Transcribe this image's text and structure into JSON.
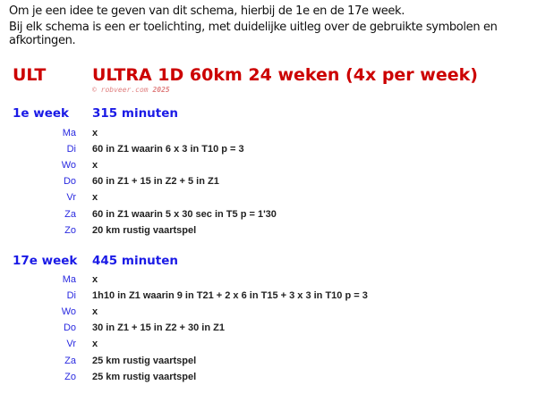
{
  "intro": [
    "Om je een idee te geven van dit schema, hierbij de 1e en de 17e week.",
    "Bij elk schema is een er toelichting, met duidelijke uitleg over de gebruikte symbolen en afkortingen."
  ],
  "schema": {
    "code": "ULT",
    "title": "ULTRA 1D 60km 24 weken (4x per week)",
    "copyright": "© robveer.com",
    "year": "2025"
  },
  "weeks": [
    {
      "label": "1e week",
      "total": "315 minuten",
      "days": [
        {
          "day": "Ma",
          "plan": "x"
        },
        {
          "day": "Di",
          "plan": "60 in Z1  waarin 6 x 3 in T10 p = 3"
        },
        {
          "day": "Wo",
          "plan": "x"
        },
        {
          "day": "Do",
          "plan": "60 in Z1 + 15 in Z2 + 5 in Z1"
        },
        {
          "day": "Vr",
          "plan": "x"
        },
        {
          "day": "Za",
          "plan": "60 in Z1  waarin 5 x 30 sec in T5  p = 1'30"
        },
        {
          "day": "Zo",
          "plan": "20 km rustig vaartspel"
        }
      ]
    },
    {
      "label": "17e week",
      "total": "445 minuten",
      "days": [
        {
          "day": "Ma",
          "plan": "x"
        },
        {
          "day": "Di",
          "plan": "1h10 in Z1  waarin 9 in T21 + 2 x 6 in T15 + 3 x 3 in T10  p = 3"
        },
        {
          "day": "Wo",
          "plan": "x"
        },
        {
          "day": "Do",
          "plan": "30 in Z1 + 15 in Z2 + 30 in Z1"
        },
        {
          "day": "Vr",
          "plan": "x"
        },
        {
          "day": "Za",
          "plan": "25 km rustig vaartspel"
        },
        {
          "day": "Zo",
          "plan": "25 km rustig vaartspel"
        }
      ]
    }
  ]
}
